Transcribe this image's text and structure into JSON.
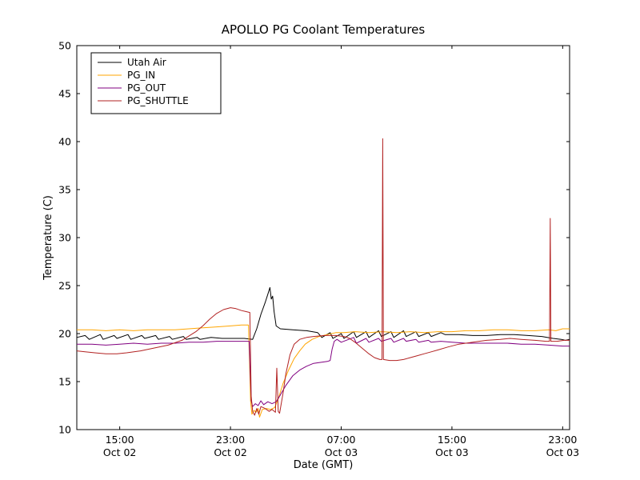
{
  "chart_data": {
    "type": "line",
    "title": "APOLLO PG Coolant Temperatures",
    "xlabel": "Date (GMT)",
    "ylabel": "Temperature (C)",
    "background": "#ffffff",
    "grid": false,
    "legend_position": "upper left",
    "x_axis_note": "x values are hours since Oct 02 00:00 GMT",
    "xlim": [
      11.9,
      47.5
    ],
    "ylim": [
      10,
      50
    ],
    "yticks": [
      10,
      15,
      20,
      25,
      30,
      35,
      40,
      45,
      50
    ],
    "xticks": [
      {
        "value": 15,
        "label1": "15:00",
        "label2": "Oct 02"
      },
      {
        "value": 23,
        "label1": "23:00",
        "label2": "Oct 02"
      },
      {
        "value": 31,
        "label1": "07:00",
        "label2": "Oct 03"
      },
      {
        "value": 39,
        "label1": "15:00",
        "label2": "Oct 03"
      },
      {
        "value": 47,
        "label1": "23:00",
        "label2": "Oct 03"
      }
    ],
    "series": [
      {
        "name": "Utah Air",
        "color": "#000000",
        "points": [
          [
            11.9,
            19.6
          ],
          [
            12.5,
            19.8
          ],
          [
            12.8,
            19.4
          ],
          [
            13.6,
            19.9
          ],
          [
            13.8,
            19.4
          ],
          [
            14.6,
            19.8
          ],
          [
            14.8,
            19.5
          ],
          [
            15.6,
            19.9
          ],
          [
            15.8,
            19.4
          ],
          [
            16.6,
            19.8
          ],
          [
            16.8,
            19.5
          ],
          [
            17.6,
            19.8
          ],
          [
            17.8,
            19.4
          ],
          [
            18.6,
            19.7
          ],
          [
            18.8,
            19.4
          ],
          [
            19.6,
            19.7
          ],
          [
            19.8,
            19.4
          ],
          [
            20.6,
            19.6
          ],
          [
            20.8,
            19.4
          ],
          [
            21.6,
            19.6
          ],
          [
            22.4,
            19.5
          ],
          [
            23.2,
            19.5
          ],
          [
            24.0,
            19.5
          ],
          [
            24.6,
            19.4
          ],
          [
            24.9,
            20.5
          ],
          [
            25.2,
            22.0
          ],
          [
            25.5,
            23.2
          ],
          [
            25.7,
            24.1
          ],
          [
            25.85,
            24.8
          ],
          [
            25.95,
            23.6
          ],
          [
            26.05,
            23.9
          ],
          [
            26.15,
            22.3
          ],
          [
            26.3,
            20.8
          ],
          [
            26.6,
            20.5
          ],
          [
            27.5,
            20.4
          ],
          [
            28.5,
            20.3
          ],
          [
            29.3,
            20.1
          ],
          [
            29.6,
            19.6
          ],
          [
            30.2,
            20.1
          ],
          [
            30.4,
            19.5
          ],
          [
            31.0,
            20.0
          ],
          [
            31.2,
            19.5
          ],
          [
            31.9,
            20.2
          ],
          [
            32.1,
            19.6
          ],
          [
            32.8,
            20.2
          ],
          [
            33.0,
            19.6
          ],
          [
            33.7,
            20.3
          ],
          [
            33.9,
            19.7
          ],
          [
            34.6,
            20.2
          ],
          [
            34.8,
            19.6
          ],
          [
            35.5,
            20.3
          ],
          [
            35.7,
            19.7
          ],
          [
            36.4,
            20.2
          ],
          [
            36.6,
            19.7
          ],
          [
            37.3,
            20.1
          ],
          [
            37.5,
            19.7
          ],
          [
            38.2,
            20.1
          ],
          [
            38.5,
            19.9
          ],
          [
            39.5,
            19.9
          ],
          [
            40.5,
            19.8
          ],
          [
            41.5,
            19.8
          ],
          [
            42.5,
            19.9
          ],
          [
            43.5,
            19.9
          ],
          [
            44.5,
            19.8
          ],
          [
            45.5,
            19.7
          ],
          [
            46.3,
            19.5
          ],
          [
            46.9,
            19.4
          ],
          [
            47.2,
            19.3
          ],
          [
            47.5,
            19.4
          ]
        ]
      },
      {
        "name": "PG_IN",
        "color": "#ffa500",
        "points": [
          [
            11.9,
            20.4
          ],
          [
            13.0,
            20.4
          ],
          [
            14.0,
            20.3
          ],
          [
            15.0,
            20.4
          ],
          [
            16.0,
            20.3
          ],
          [
            17.0,
            20.4
          ],
          [
            18.0,
            20.4
          ],
          [
            19.0,
            20.4
          ],
          [
            20.0,
            20.5
          ],
          [
            21.0,
            20.6
          ],
          [
            22.0,
            20.7
          ],
          [
            23.0,
            20.8
          ],
          [
            23.8,
            20.9
          ],
          [
            24.3,
            20.9
          ],
          [
            24.45,
            13.0
          ],
          [
            24.55,
            11.6
          ],
          [
            24.7,
            12.0
          ],
          [
            24.85,
            11.8
          ],
          [
            25.0,
            12.2
          ],
          [
            25.1,
            11.3
          ],
          [
            25.3,
            12.1
          ],
          [
            25.6,
            12.2
          ],
          [
            25.9,
            12.1
          ],
          [
            26.2,
            12.3
          ],
          [
            26.45,
            13.2
          ],
          [
            26.8,
            14.8
          ],
          [
            27.2,
            16.2
          ],
          [
            27.6,
            17.4
          ],
          [
            28.0,
            18.2
          ],
          [
            28.4,
            18.9
          ],
          [
            28.9,
            19.4
          ],
          [
            29.4,
            19.7
          ],
          [
            30.0,
            19.9
          ],
          [
            30.6,
            20.1
          ],
          [
            31.2,
            20.1
          ],
          [
            32.0,
            20.2
          ],
          [
            33.0,
            20.1
          ],
          [
            34.0,
            20.2
          ],
          [
            35.0,
            20.1
          ],
          [
            36.0,
            20.2
          ],
          [
            37.0,
            20.1
          ],
          [
            38.0,
            20.2
          ],
          [
            39.0,
            20.2
          ],
          [
            40.0,
            20.3
          ],
          [
            41.0,
            20.3
          ],
          [
            42.0,
            20.4
          ],
          [
            43.0,
            20.4
          ],
          [
            44.0,
            20.3
          ],
          [
            45.0,
            20.3
          ],
          [
            46.0,
            20.4
          ],
          [
            46.5,
            20.3
          ],
          [
            47.0,
            20.5
          ],
          [
            47.5,
            20.5
          ]
        ]
      },
      {
        "name": "PG_OUT",
        "color": "#800080",
        "points": [
          [
            11.9,
            18.9
          ],
          [
            13.0,
            18.9
          ],
          [
            14.0,
            18.8
          ],
          [
            15.0,
            18.9
          ],
          [
            16.0,
            19.0
          ],
          [
            17.0,
            18.9
          ],
          [
            18.0,
            19.0
          ],
          [
            19.0,
            19.0
          ],
          [
            20.0,
            19.1
          ],
          [
            21.0,
            19.1
          ],
          [
            22.0,
            19.2
          ],
          [
            23.0,
            19.2
          ],
          [
            23.8,
            19.2
          ],
          [
            24.35,
            19.2
          ],
          [
            24.5,
            13.0
          ],
          [
            24.6,
            12.4
          ],
          [
            24.8,
            12.7
          ],
          [
            25.0,
            12.5
          ],
          [
            25.2,
            13.0
          ],
          [
            25.4,
            12.6
          ],
          [
            25.7,
            12.9
          ],
          [
            26.0,
            12.7
          ],
          [
            26.3,
            12.9
          ],
          [
            26.6,
            13.6
          ],
          [
            27.0,
            14.6
          ],
          [
            27.5,
            15.6
          ],
          [
            28.0,
            16.2
          ],
          [
            28.5,
            16.6
          ],
          [
            29.0,
            16.9
          ],
          [
            29.5,
            17.0
          ],
          [
            30.0,
            17.1
          ],
          [
            30.2,
            17.2
          ],
          [
            30.35,
            18.4
          ],
          [
            30.5,
            19.2
          ],
          [
            30.7,
            19.4
          ],
          [
            31.0,
            19.1
          ],
          [
            31.9,
            19.6
          ],
          [
            32.1,
            19.0
          ],
          [
            32.8,
            19.5
          ],
          [
            33.0,
            19.1
          ],
          [
            33.7,
            19.5
          ],
          [
            33.9,
            19.2
          ],
          [
            34.6,
            19.5
          ],
          [
            34.8,
            19.1
          ],
          [
            35.5,
            19.5
          ],
          [
            35.7,
            19.2
          ],
          [
            36.4,
            19.4
          ],
          [
            36.6,
            19.1
          ],
          [
            37.3,
            19.3
          ],
          [
            37.5,
            19.1
          ],
          [
            38.2,
            19.2
          ],
          [
            39.0,
            19.1
          ],
          [
            40.0,
            19.0
          ],
          [
            41.0,
            19.0
          ],
          [
            42.0,
            19.0
          ],
          [
            43.0,
            19.0
          ],
          [
            44.0,
            18.9
          ],
          [
            45.0,
            18.9
          ],
          [
            46.0,
            18.8
          ],
          [
            47.0,
            18.7
          ],
          [
            47.5,
            18.7
          ]
        ]
      },
      {
        "name": "PG_SHUTTLE",
        "color": "#b22222",
        "points": [
          [
            11.9,
            18.2
          ],
          [
            12.5,
            18.1
          ],
          [
            13.2,
            18.0
          ],
          [
            14.0,
            17.9
          ],
          [
            14.8,
            17.9
          ],
          [
            15.5,
            18.0
          ],
          [
            16.5,
            18.2
          ],
          [
            17.5,
            18.5
          ],
          [
            18.5,
            18.8
          ],
          [
            19.5,
            19.3
          ],
          [
            20.5,
            20.2
          ],
          [
            21.0,
            20.8
          ],
          [
            21.5,
            21.5
          ],
          [
            22.0,
            22.1
          ],
          [
            22.5,
            22.5
          ],
          [
            23.0,
            22.7
          ],
          [
            23.4,
            22.6
          ],
          [
            23.8,
            22.4
          ],
          [
            24.1,
            22.3
          ],
          [
            24.4,
            22.2
          ],
          [
            24.5,
            13.5
          ],
          [
            24.6,
            11.9
          ],
          [
            24.75,
            11.5
          ],
          [
            24.9,
            12.2
          ],
          [
            25.05,
            11.6
          ],
          [
            25.2,
            12.4
          ],
          [
            25.5,
            12.2
          ],
          [
            25.8,
            11.9
          ],
          [
            26.0,
            12.1
          ],
          [
            26.25,
            11.8
          ],
          [
            26.35,
            16.4
          ],
          [
            26.45,
            11.9
          ],
          [
            26.55,
            11.7
          ],
          [
            26.8,
            13.8
          ],
          [
            27.0,
            15.8
          ],
          [
            27.3,
            17.8
          ],
          [
            27.6,
            18.9
          ],
          [
            28.0,
            19.4
          ],
          [
            28.5,
            19.6
          ],
          [
            29.0,
            19.7
          ],
          [
            29.8,
            19.8
          ],
          [
            30.6,
            19.8
          ],
          [
            31.2,
            19.7
          ],
          [
            31.6,
            19.5
          ],
          [
            32.0,
            19.1
          ],
          [
            32.5,
            18.5
          ],
          [
            33.0,
            17.9
          ],
          [
            33.4,
            17.5
          ],
          [
            33.8,
            17.3
          ],
          [
            33.95,
            17.3
          ],
          [
            34.0,
            40.3
          ],
          [
            34.05,
            17.3
          ],
          [
            34.5,
            17.2
          ],
          [
            35.0,
            17.2
          ],
          [
            35.5,
            17.3
          ],
          [
            36.0,
            17.5
          ],
          [
            36.5,
            17.7
          ],
          [
            37.0,
            17.9
          ],
          [
            37.5,
            18.1
          ],
          [
            38.0,
            18.3
          ],
          [
            38.7,
            18.6
          ],
          [
            39.5,
            18.9
          ],
          [
            40.5,
            19.1
          ],
          [
            41.5,
            19.3
          ],
          [
            42.5,
            19.4
          ],
          [
            43.2,
            19.5
          ],
          [
            44.0,
            19.4
          ],
          [
            45.0,
            19.3
          ],
          [
            45.8,
            19.2
          ],
          [
            46.05,
            19.2
          ],
          [
            46.1,
            32.0
          ],
          [
            46.15,
            19.2
          ],
          [
            46.6,
            19.2
          ],
          [
            47.1,
            19.3
          ],
          [
            47.5,
            19.3
          ]
        ]
      }
    ]
  }
}
